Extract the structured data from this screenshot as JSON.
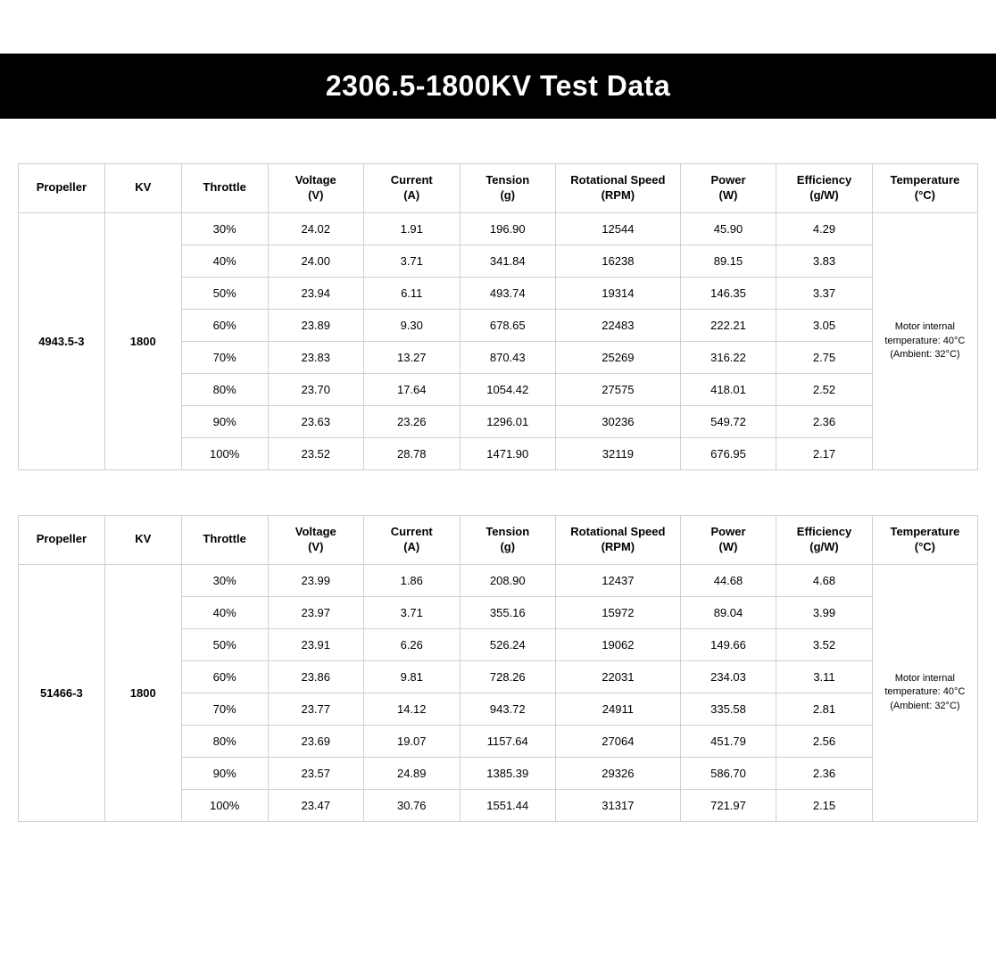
{
  "title": "2306.5-1800KV  Test Data",
  "columns": [
    "Propeller",
    "KV",
    "Throttle",
    "Voltage\n(V)",
    "Current\n(A)",
    "Tension\n(g)",
    "Rotational Speed\n(RPM)",
    "Power\n(W)",
    "Efficiency\n(g/W)",
    "Temperature\n(°C)"
  ],
  "column_widths_pct": [
    9,
    8,
    9,
    10,
    10,
    10,
    13,
    10,
    10,
    11
  ],
  "header_fontsize": 13,
  "cell_fontsize": 13,
  "temp_fontsize": 11,
  "border_color": "#d0d0d0",
  "title_bg": "#000000",
  "title_color": "#ffffff",
  "title_fontsize": 32,
  "tables": [
    {
      "propeller": "4943.5-3",
      "kv": "1800",
      "temperature_note": "Motor internal temperature: 40°C\n(Ambient: 32°C)",
      "rows": [
        {
          "throttle": "30%",
          "voltage": "24.02",
          "current": "1.91",
          "tension": "196.90",
          "rpm": "12544",
          "power": "45.90",
          "eff": "4.29"
        },
        {
          "throttle": "40%",
          "voltage": "24.00",
          "current": "3.71",
          "tension": "341.84",
          "rpm": "16238",
          "power": "89.15",
          "eff": "3.83"
        },
        {
          "throttle": "50%",
          "voltage": "23.94",
          "current": "6.11",
          "tension": "493.74",
          "rpm": "19314",
          "power": "146.35",
          "eff": "3.37"
        },
        {
          "throttle": "60%",
          "voltage": "23.89",
          "current": "9.30",
          "tension": "678.65",
          "rpm": "22483",
          "power": "222.21",
          "eff": "3.05"
        },
        {
          "throttle": "70%",
          "voltage": "23.83",
          "current": "13.27",
          "tension": "870.43",
          "rpm": "25269",
          "power": "316.22",
          "eff": "2.75"
        },
        {
          "throttle": "80%",
          "voltage": "23.70",
          "current": "17.64",
          "tension": "1054.42",
          "rpm": "27575",
          "power": "418.01",
          "eff": "2.52"
        },
        {
          "throttle": "90%",
          "voltage": "23.63",
          "current": "23.26",
          "tension": "1296.01",
          "rpm": "30236",
          "power": "549.72",
          "eff": "2.36"
        },
        {
          "throttle": "100%",
          "voltage": "23.52",
          "current": "28.78",
          "tension": "1471.90",
          "rpm": "32119",
          "power": "676.95",
          "eff": "2.17"
        }
      ]
    },
    {
      "propeller": "51466-3",
      "kv": "1800",
      "temperature_note": "Motor internal temperature: 40°C\n(Ambient: 32°C)",
      "rows": [
        {
          "throttle": "30%",
          "voltage": "23.99",
          "current": "1.86",
          "tension": "208.90",
          "rpm": "12437",
          "power": "44.68",
          "eff": "4.68"
        },
        {
          "throttle": "40%",
          "voltage": "23.97",
          "current": "3.71",
          "tension": "355.16",
          "rpm": "15972",
          "power": "89.04",
          "eff": "3.99"
        },
        {
          "throttle": "50%",
          "voltage": "23.91",
          "current": "6.26",
          "tension": "526.24",
          "rpm": "19062",
          "power": "149.66",
          "eff": "3.52"
        },
        {
          "throttle": "60%",
          "voltage": "23.86",
          "current": "9.81",
          "tension": "728.26",
          "rpm": "22031",
          "power": "234.03",
          "eff": "3.11"
        },
        {
          "throttle": "70%",
          "voltage": "23.77",
          "current": "14.12",
          "tension": "943.72",
          "rpm": "24911",
          "power": "335.58",
          "eff": "2.81"
        },
        {
          "throttle": "80%",
          "voltage": "23.69",
          "current": "19.07",
          "tension": "1157.64",
          "rpm": "27064",
          "power": "451.79",
          "eff": "2.56"
        },
        {
          "throttle": "90%",
          "voltage": "23.57",
          "current": "24.89",
          "tension": "1385.39",
          "rpm": "29326",
          "power": "586.70",
          "eff": "2.36"
        },
        {
          "throttle": "100%",
          "voltage": "23.47",
          "current": "30.76",
          "tension": "1551.44",
          "rpm": "31317",
          "power": "721.97",
          "eff": "2.15"
        }
      ]
    }
  ]
}
